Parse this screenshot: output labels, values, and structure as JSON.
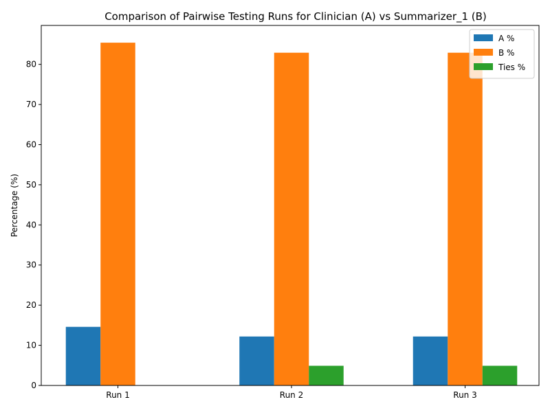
{
  "chart_data": {
    "type": "bar",
    "title": "Comparison of Pairwise Testing Runs for Clinician (A) vs Summarizer_1 (B)",
    "xlabel": "",
    "ylabel": "Percentage (%)",
    "categories": [
      "Run 1",
      "Run 2",
      "Run 3"
    ],
    "series": [
      {
        "name": "A %",
        "color": "#1f77b4",
        "values": [
          14.6,
          12.2,
          12.2
        ]
      },
      {
        "name": "B %",
        "color": "#ff7f0e",
        "values": [
          85.4,
          82.9,
          82.9
        ]
      },
      {
        "name": "Ties %",
        "color": "#2ca02c",
        "values": [
          0,
          4.9,
          4.9
        ]
      }
    ],
    "ylim": [
      0,
      89.7
    ],
    "yticks": [
      0,
      10,
      20,
      30,
      40,
      50,
      60,
      70,
      80
    ],
    "grid": false,
    "legend_position": "top-right"
  }
}
